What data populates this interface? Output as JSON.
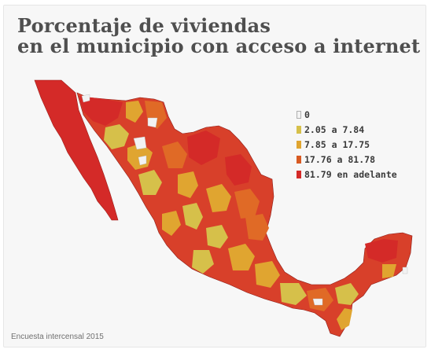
{
  "title": {
    "line1": "Porcentaje de viviendas",
    "line2": "en el municipio con acceso a internet"
  },
  "legend": {
    "items": [
      {
        "label": "0",
        "color": "#f2f2f2"
      },
      {
        "label": "2.05 a 7.84",
        "color": "#d6c04a"
      },
      {
        "label": "7.85 a 17.75",
        "color": "#e0a530"
      },
      {
        "label": "17.76 a 81.78",
        "color": "#d85a22"
      },
      {
        "label": "81.79 en adelante",
        "color": "#d42a28"
      }
    ]
  },
  "source": "Encuesta intercensal 2015"
}
